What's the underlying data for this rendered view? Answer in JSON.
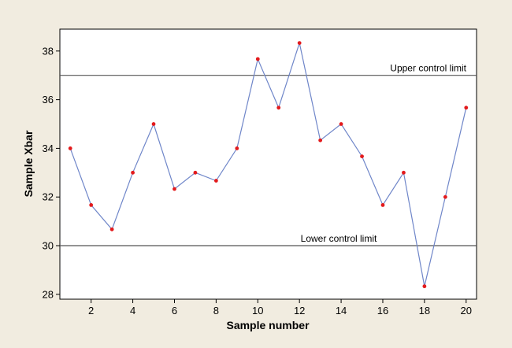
{
  "chart_data": {
    "type": "line",
    "title": "",
    "xlabel": "Sample number",
    "ylabel": "Sample Xbar",
    "xlim": [
      0.5,
      20.5
    ],
    "ylim": [
      27.8,
      38.9
    ],
    "xticks": [
      2,
      4,
      6,
      8,
      10,
      12,
      14,
      16,
      18,
      20
    ],
    "yticks": [
      28,
      30,
      32,
      34,
      36,
      38
    ],
    "x": [
      1,
      2,
      3,
      4,
      5,
      6,
      7,
      8,
      9,
      10,
      11,
      12,
      13,
      14,
      15,
      16,
      17,
      18,
      19,
      20
    ],
    "series": [
      {
        "values": [
          34.0,
          31.67,
          30.67,
          33.0,
          35.0,
          32.33,
          33.0,
          32.67,
          34.0,
          37.67,
          35.67,
          38.33,
          34.33,
          35.0,
          33.67,
          31.67,
          33.0,
          28.33,
          32.0,
          35.67
        ],
        "line_color": "#6f86c9",
        "marker_color": "#e31a1c"
      }
    ],
    "reference_lines": [
      {
        "y": 37,
        "label": "Upper control limit",
        "color": "#555555"
      },
      {
        "y": 30,
        "label": "Lower control limit",
        "color": "#555555"
      }
    ],
    "grid": false,
    "legend": "none"
  }
}
